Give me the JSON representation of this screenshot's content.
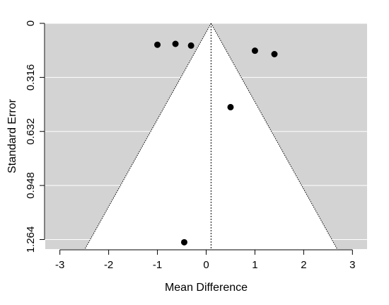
{
  "chart_data": {
    "type": "scatter",
    "title": "",
    "xlabel": "Mean Difference",
    "ylabel": "Standard Error",
    "xlim": [
      -3.3,
      3.3
    ],
    "ylim": [
      1.32,
      0
    ],
    "x_ticks": [
      -3,
      -2,
      -1,
      0,
      1,
      2,
      3
    ],
    "x_tick_labels": [
      "-3",
      "-2",
      "-1",
      "0",
      "1",
      "2",
      "3"
    ],
    "y_ticks": [
      0,
      0.316,
      0.632,
      0.948,
      1.264
    ],
    "y_tick_labels": [
      "0",
      "0.316",
      "0.632",
      "0.948",
      "1.264"
    ],
    "y_reversed": true,
    "grid": true,
    "background_color": "#d3d3d3",
    "funnel_fill_color": "#ffffff",
    "point_color": "#000000",
    "summary_estimate": 0.1,
    "funnel_limits_z": 1.96,
    "points": [
      {
        "x": -1.0,
        "y": 0.125
      },
      {
        "x": -0.63,
        "y": 0.12
      },
      {
        "x": -0.31,
        "y": 0.13
      },
      {
        "x": 1.0,
        "y": 0.16
      },
      {
        "x": 1.4,
        "y": 0.18
      },
      {
        "x": 0.5,
        "y": 0.49
      },
      {
        "x": -0.45,
        "y": 1.28
      }
    ]
  }
}
